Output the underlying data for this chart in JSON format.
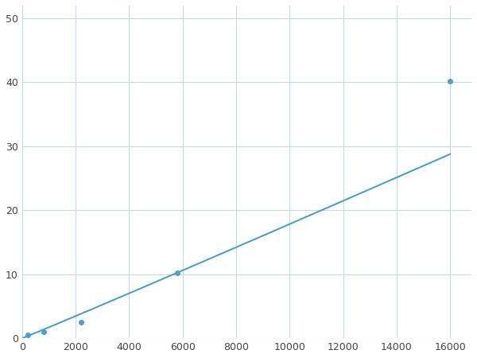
{
  "x": [
    200,
    800,
    2200,
    5800,
    16000
  ],
  "y": [
    0.5,
    1.0,
    2.5,
    10.2,
    40.2
  ],
  "line_color": "#4d9fcc",
  "marker_color": "#4d9fcc",
  "marker_size": 4,
  "line_width": 1.5,
  "xlim": [
    0,
    16800
  ],
  "ylim": [
    0,
    52
  ],
  "xticks": [
    0,
    2000,
    4000,
    6000,
    8000,
    10000,
    12000,
    14000,
    16000
  ],
  "yticks": [
    0,
    10,
    20,
    30,
    40,
    50
  ],
  "grid_color": "#c8d8e8",
  "background_color": "#ffffff",
  "figsize": [
    6.0,
    4.5
  ],
  "dpi": 100
}
